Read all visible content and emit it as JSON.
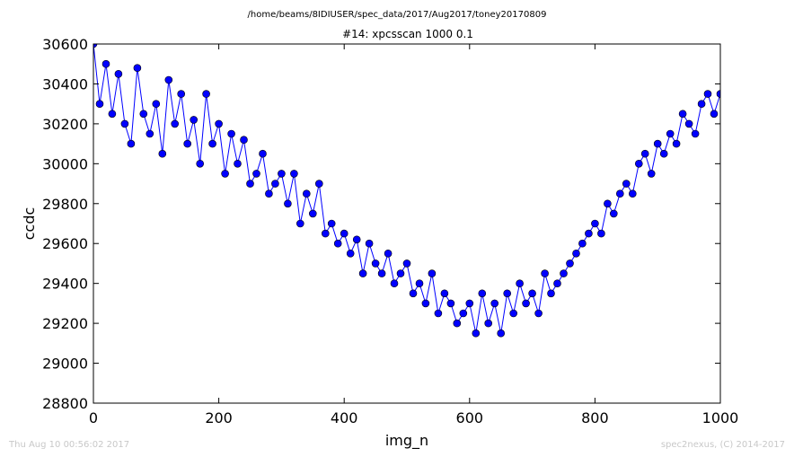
{
  "header": {
    "path": "/home/beams/8IDIUSER/spec_data/2017/Aug2017/toney20170809"
  },
  "footer": {
    "timestamp": "Thu Aug 10 00:56:02 2017",
    "credit": "spec2nexus, (C) 2014-2017"
  },
  "colors": {
    "series": "#0000ff",
    "footer_text": "#c8c8c8"
  },
  "chart_data": {
    "type": "line",
    "markers": "circle",
    "title": "#14: xpcsscan 1000 0.1",
    "xlabel": "img_n",
    "ylabel": "ccdc",
    "xlim": [
      0,
      1000
    ],
    "ylim": [
      28800,
      30600
    ],
    "xticks": [
      0,
      200,
      400,
      600,
      800,
      1000
    ],
    "yticks": [
      28800,
      29000,
      29200,
      29400,
      29600,
      29800,
      30000,
      30200,
      30400,
      30600
    ],
    "grid": false,
    "series": [
      {
        "x": [
          0,
          10,
          20,
          30,
          40,
          50,
          60,
          70,
          80,
          90,
          100,
          110,
          120,
          130,
          140,
          150,
          160,
          170,
          180,
          190,
          200,
          210,
          220,
          230,
          240,
          250,
          260,
          270,
          280,
          290,
          300,
          310,
          320,
          330,
          340,
          350,
          360,
          370,
          380,
          390,
          400,
          410,
          420,
          430,
          440,
          450,
          460,
          470,
          480,
          490,
          500,
          510,
          520,
          530,
          540,
          550,
          560,
          570,
          580,
          590,
          600,
          610,
          620,
          630,
          640,
          650,
          660,
          670,
          680,
          690,
          700,
          710,
          720,
          730,
          740,
          750,
          760,
          770,
          780,
          790,
          800,
          810,
          820,
          830,
          840,
          850,
          860,
          870,
          880,
          890,
          900,
          910,
          920,
          930,
          940,
          950,
          960,
          970,
          980,
          990,
          1000
        ],
        "y": [
          30600,
          30300,
          30500,
          30250,
          30450,
          30200,
          30100,
          30480,
          30250,
          30150,
          30300,
          30050,
          30420,
          30200,
          30350,
          30100,
          30220,
          30000,
          30350,
          30100,
          30200,
          29950,
          30150,
          30000,
          30120,
          29900,
          29950,
          30050,
          29850,
          29900,
          29950,
          29800,
          29950,
          29700,
          29850,
          29750,
          29900,
          29650,
          29700,
          29600,
          29650,
          29550,
          29620,
          29450,
          29600,
          29500,
          29450,
          29550,
          29400,
          29450,
          29500,
          29350,
          29400,
          29300,
          29450,
          29250,
          29350,
          29300,
          29200,
          29250,
          29300,
          29150,
          29350,
          29200,
          29300,
          29150,
          29350,
          29250,
          29400,
          29300,
          29350,
          29250,
          29450,
          29350,
          29400,
          29450,
          29500,
          29550,
          29600,
          29650,
          29700,
          29650,
          29800,
          29750,
          29850,
          29900,
          29850,
          30000,
          30050,
          29950,
          30100,
          30050,
          30150,
          30100,
          30250,
          30200,
          30150,
          30300,
          30350,
          30250,
          30350
        ]
      }
    ]
  }
}
